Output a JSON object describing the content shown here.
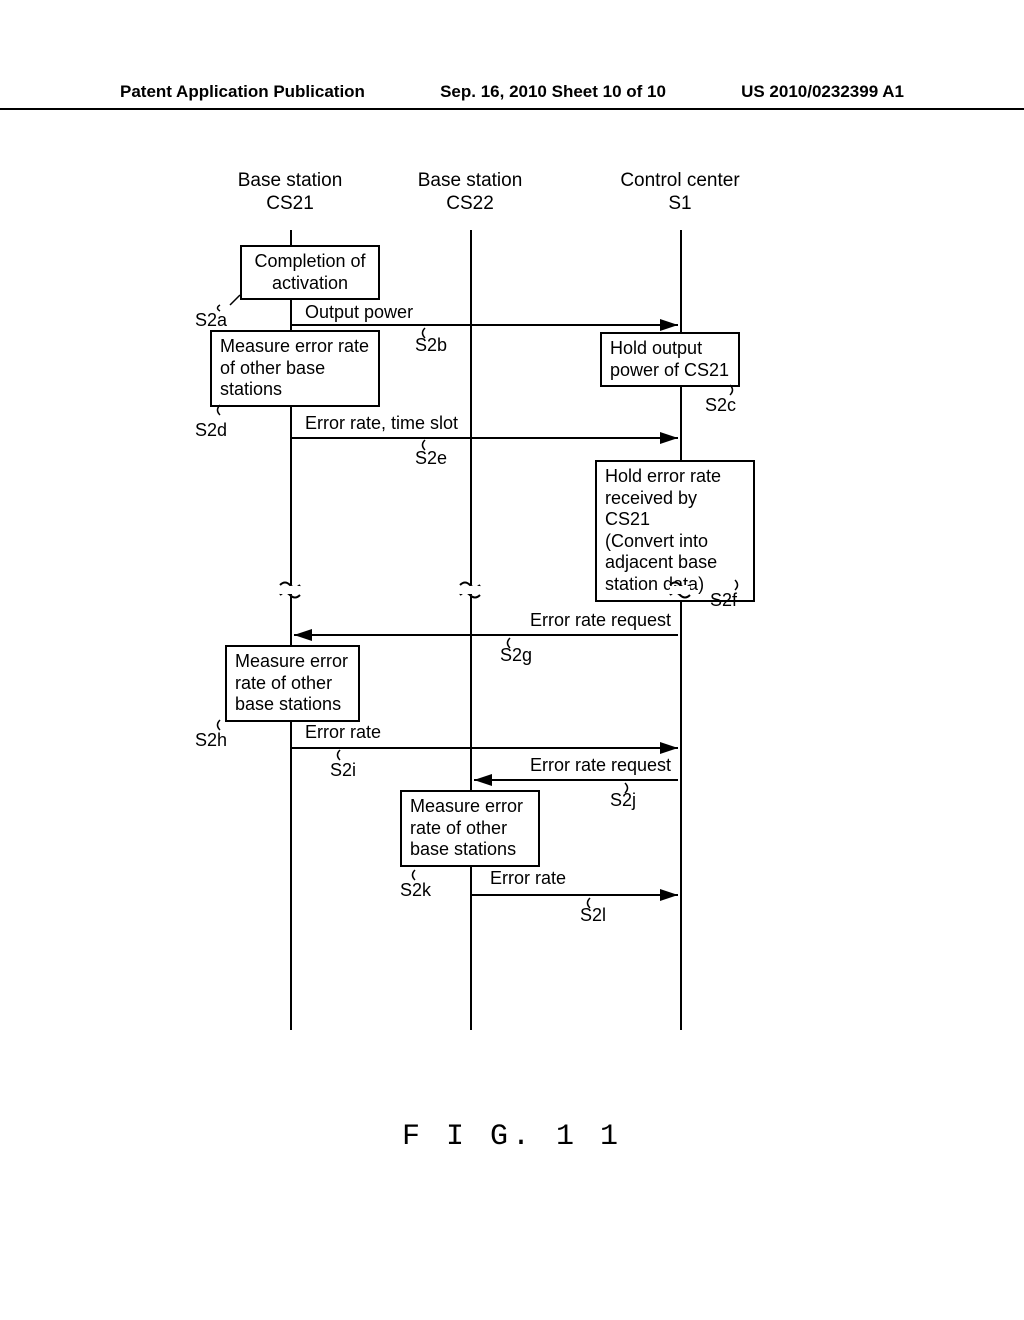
{
  "header": {
    "left": "Patent Application Publication",
    "center": "Sep. 16, 2010  Sheet 10 of 10",
    "right": "US 2010/0232399 A1"
  },
  "lanes": {
    "cs21_line1": "Base station",
    "cs21_line2": "CS21",
    "cs22_line1": "Base station",
    "cs22_line2": "CS22",
    "s1_line1": "Control center",
    "s1_line2": "S1"
  },
  "boxes": {
    "completion": "Completion of\nactivation",
    "measure_s2d": "Measure error rate\nof other base\nstations",
    "hold_s2c": "Hold output\npower of CS21",
    "hold_s2f": "Hold error rate\nreceived by CS21\n(Convert into\nadjacent base\nstation data)",
    "measure_s2h": "Measure error\nrate of other\nbase stations",
    "measure_s2k": "Measure error\nrate of other\nbase stations"
  },
  "labels": {
    "s2a": "S2a",
    "s2b_msg": "Output power",
    "s2b": "S2b",
    "s2c": "S2c",
    "s2d": "S2d",
    "s2e_msg": "Error rate, time slot",
    "s2e": "S2e",
    "s2f": "S2f",
    "s2g_msg": "Error rate request",
    "s2g": "S2g",
    "s2h": "S2h",
    "s2i_msg": "Error rate",
    "s2i": "S2i",
    "s2j_msg": "Error rate request",
    "s2j": "S2j",
    "s2k": "S2k",
    "s2l_msg": "Error rate",
    "s2l": "S2l"
  },
  "figure_label": "F I G. 1 1",
  "style": {
    "background": "#ffffff",
    "line_color": "#000000",
    "font_size_body": 18,
    "font_size_header": 17,
    "font_size_fig": 30,
    "lifeline_x": {
      "cs21": 80,
      "cs22": 260,
      "s1": 470
    }
  }
}
